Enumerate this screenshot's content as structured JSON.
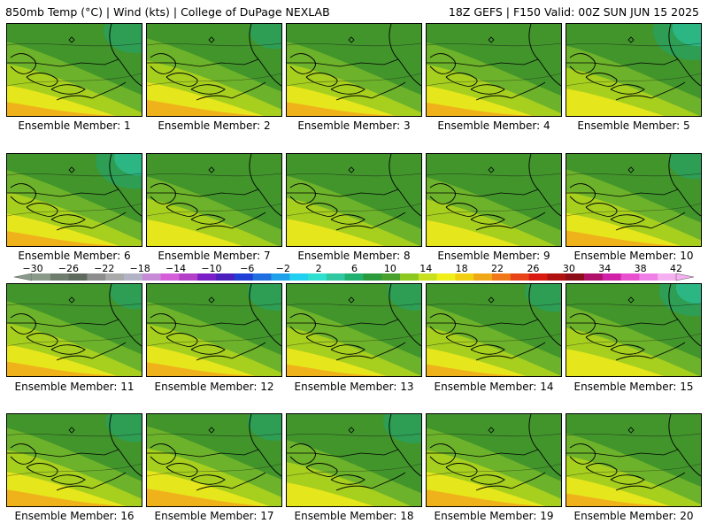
{
  "header": {
    "left": "850mb Temp (°C) | Wind (kts) | College of DuPage NEXLAB",
    "right": "18Z GEFS | F150 Valid: 00Z SUN JUN 15 2025"
  },
  "member_prefix": "Ensemble Member: ",
  "members": [
    {
      "n": "1",
      "warm": 0.55,
      "cold": 0.35
    },
    {
      "n": "2",
      "warm": 0.75,
      "cold": 0.2
    },
    {
      "n": "3",
      "warm": 0.55,
      "cold": 0.1
    },
    {
      "n": "4",
      "warm": 0.5,
      "cold": 0.15
    },
    {
      "n": "5",
      "warm": 0.3,
      "cold": 0.6
    },
    {
      "n": "6",
      "warm": 0.65,
      "cold": 0.55
    },
    {
      "n": "7",
      "warm": 0.25,
      "cold": 0.15
    },
    {
      "n": "8",
      "warm": 0.3,
      "cold": 0.1
    },
    {
      "n": "9",
      "warm": 0.2,
      "cold": 0.05
    },
    {
      "n": "10",
      "warm": 0.7,
      "cold": 0.2
    },
    {
      "n": "11",
      "warm": 0.6,
      "cold": 0.2
    },
    {
      "n": "12",
      "warm": 0.55,
      "cold": 0.25
    },
    {
      "n": "13",
      "warm": 0.35,
      "cold": 0.25
    },
    {
      "n": "14",
      "warm": 0.35,
      "cold": 0.3
    },
    {
      "n": "15",
      "warm": 0.3,
      "cold": 0.45
    },
    {
      "n": "16",
      "warm": 0.8,
      "cold": 0.3
    },
    {
      "n": "17",
      "warm": 0.9,
      "cold": 0.25
    },
    {
      "n": "18",
      "warm": 0.05,
      "cold": 0.35
    },
    {
      "n": "19",
      "warm": 0.8,
      "cold": 0.1
    },
    {
      "n": "20",
      "warm": 0.45,
      "cold": 0.15
    }
  ],
  "colorbar": {
    "labels": [
      "−30",
      "−26",
      "−22",
      "−18",
      "−14",
      "−10",
      "−6",
      "−2",
      "2",
      "6",
      "10",
      "14",
      "18",
      "22",
      "26",
      "30",
      "34",
      "38",
      "42"
    ],
    "colors": [
      "#8a9a8a",
      "#6f7d6f",
      "#5e6a5e",
      "#8d8d8d",
      "#a9a9a9",
      "#b3b3c6",
      "#c78ad6",
      "#d55fd8",
      "#b43fc9",
      "#7a1fc7",
      "#4b1fbd",
      "#1f3fd6",
      "#1f6fe0",
      "#1fa0ea",
      "#1fd0f0",
      "#2fe0d0",
      "#2fc8a0",
      "#20b070",
      "#2a9a3c",
      "#4aa02c",
      "#8cc820",
      "#c8e020",
      "#f0f018",
      "#f0d010",
      "#f0a818",
      "#f07818",
      "#e84418",
      "#d81a10",
      "#b01010",
      "#8c0c18",
      "#b0106a",
      "#d020a8",
      "#e850d0",
      "#f080e8",
      "#f4b0f0"
    ]
  }
}
